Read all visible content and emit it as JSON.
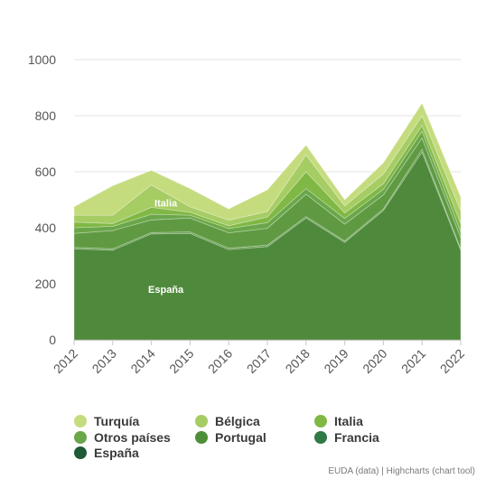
{
  "chart_data": {
    "type": "area",
    "stacked": true,
    "x": [
      "2012",
      "2013",
      "2014",
      "2015",
      "2016",
      "2017",
      "2018",
      "2019",
      "2020",
      "2021",
      "2022"
    ],
    "ylim": [
      0,
      1000
    ],
    "yticks": [
      "0",
      "200",
      "400",
      "600",
      "800",
      "1000"
    ],
    "grid": true,
    "legend_position": "bottom",
    "series": [
      {
        "name": "España",
        "color": "#4f8a3c",
        "values": [
          325,
          320,
          378,
          380,
          322,
          333,
          435,
          348,
          462,
          670,
          320
        ]
      },
      {
        "name": "Francia",
        "color": "#5a963f",
        "values": [
          5,
          5,
          5,
          5,
          5,
          5,
          5,
          5,
          5,
          10,
          5
        ]
      },
      {
        "name": "Portugal",
        "color": "#5f9a42",
        "values": [
          50,
          65,
          45,
          50,
          55,
          60,
          80,
          60,
          50,
          40,
          40
        ]
      },
      {
        "name": "Otros países",
        "color": "#6aa64a",
        "values": [
          20,
          15,
          20,
          10,
          15,
          20,
          20,
          20,
          20,
          25,
          20
        ]
      },
      {
        "name": "Italia",
        "color": "#80b845",
        "values": [
          20,
          10,
          25,
          10,
          10,
          20,
          60,
          20,
          20,
          20,
          30
        ]
      },
      {
        "name": "Bélgica",
        "color": "#a6cc64",
        "values": [
          25,
          30,
          80,
          20,
          20,
          20,
          60,
          25,
          35,
          35,
          45
        ]
      },
      {
        "name": "Turquía",
        "color": "#c5dc7e",
        "values": [
          30,
          105,
          52,
          65,
          40,
          77,
          35,
          22,
          40,
          45,
          50
        ]
      }
    ],
    "legend": [
      {
        "name": "Turquía",
        "color": "#c5dc7e"
      },
      {
        "name": "Bélgica",
        "color": "#a6cc64"
      },
      {
        "name": "Italia",
        "color": "#80b845"
      },
      {
        "name": "Otros países",
        "color": "#6aa64a"
      },
      {
        "name": "Portugal",
        "color": "#4f8f3a"
      },
      {
        "name": "Francia",
        "color": "#2f7a45"
      },
      {
        "name": "España",
        "color": "#1f5a36"
      }
    ],
    "annotations": [
      {
        "text": "Italia",
        "x": "2014",
        "y": 488
      },
      {
        "text": "España",
        "x": "2014",
        "y": 180
      }
    ]
  },
  "credits": "EUDA (data) | Highcharts (chart tool)"
}
